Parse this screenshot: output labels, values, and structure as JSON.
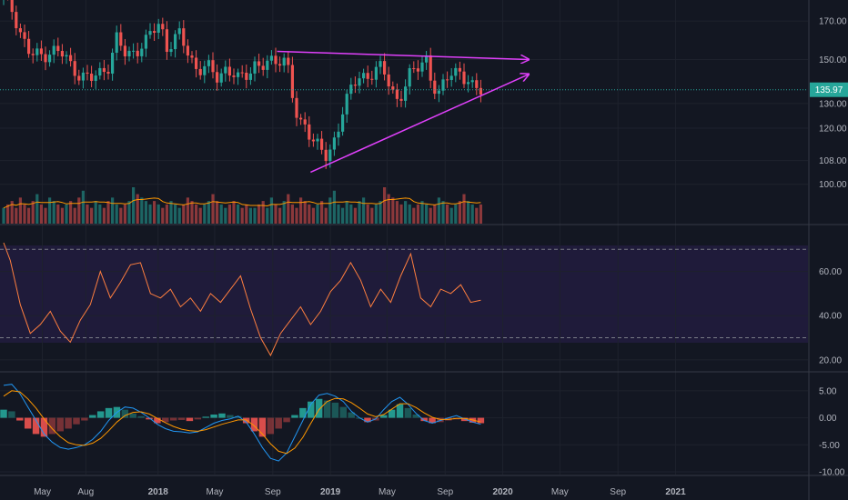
{
  "chart_data": [
    {
      "type": "candlestick",
      "panel": "price",
      "y_axis_ticks": [
        "170.00",
        "150.00",
        "130.00",
        "120.00",
        "108.00",
        "100.00"
      ],
      "y_axis_tick_values": [
        170,
        150,
        130,
        120,
        108,
        100
      ],
      "y_scale": "log",
      "ylim": [
        88,
        182
      ],
      "last_price_label": "135.97",
      "last_price": 135.97,
      "x_axis_ticks": [
        "May",
        "Aug",
        "2018",
        "May",
        "Sep",
        "2019",
        "May",
        "Sep",
        "2020",
        "May",
        "Sep",
        "2021"
      ],
      "grid": true,
      "colors": {
        "up": "#26a69a",
        "down": "#ef5350",
        "trendline": "#e040fb",
        "volume_ma": "#ff9800",
        "price_line": "#26a69a"
      },
      "trendlines": [
        {
          "kind": "resistance",
          "from_date": "2018-09-10",
          "from_price": 154,
          "to_date": "2020-02-25",
          "to_price": 150
        },
        {
          "kind": "support",
          "from_date": "2018-11-20",
          "from_price": 104,
          "to_date": "2020-02-25",
          "to_price": 143
        }
      ],
      "ohlc_path": [
        [
          "2017-02-08",
          184
        ],
        [
          "2017-03-01",
          175
        ],
        [
          "2017-03-20",
          161
        ],
        [
          "2017-04-05",
          152
        ],
        [
          "2017-05-01",
          152
        ],
        [
          "2017-05-20",
          155
        ],
        [
          "2017-06-15",
          152
        ],
        [
          "2017-07-01",
          147
        ],
        [
          "2017-07-20",
          143
        ],
        [
          "2017-08-10",
          140
        ],
        [
          "2017-09-01",
          144
        ],
        [
          "2017-09-20",
          148
        ],
        [
          "2017-10-05",
          160
        ],
        [
          "2017-10-25",
          152
        ],
        [
          "2017-11-15",
          155
        ],
        [
          "2017-12-05",
          158
        ],
        [
          "2017-12-20",
          164
        ],
        [
          "2018-01-05",
          170
        ],
        [
          "2018-01-20",
          156
        ],
        [
          "2018-02-15",
          162
        ],
        [
          "2018-03-10",
          152
        ],
        [
          "2018-03-25",
          145
        ],
        [
          "2018-04-15",
          146
        ],
        [
          "2018-05-05",
          142
        ],
        [
          "2018-05-25",
          146
        ],
        [
          "2018-06-20",
          140
        ],
        [
          "2018-07-10",
          144
        ],
        [
          "2018-07-25",
          148
        ],
        [
          "2018-08-15",
          146
        ],
        [
          "2018-09-01",
          149
        ],
        [
          "2018-09-15",
          151
        ],
        [
          "2018-10-01",
          150
        ],
        [
          "2018-10-15",
          130
        ],
        [
          "2018-10-25",
          120
        ],
        [
          "2018-11-10",
          122
        ],
        [
          "2018-11-25",
          116
        ],
        [
          "2018-12-10",
          113
        ],
        [
          "2018-12-26",
          107
        ],
        [
          "2019-01-10",
          116
        ],
        [
          "2019-01-25",
          127
        ],
        [
          "2019-02-15",
          137
        ],
        [
          "2019-03-01",
          140
        ],
        [
          "2019-03-20",
          143
        ],
        [
          "2019-04-05",
          145
        ],
        [
          "2019-04-20",
          146
        ],
        [
          "2019-05-05",
          138
        ],
        [
          "2019-05-20",
          132
        ],
        [
          "2019-06-05",
          136
        ],
        [
          "2019-06-20",
          143
        ],
        [
          "2019-07-10",
          147
        ],
        [
          "2019-07-25",
          152
        ],
        [
          "2019-08-05",
          138
        ],
        [
          "2019-08-20",
          132
        ],
        [
          "2019-09-01",
          141
        ],
        [
          "2019-09-15",
          144
        ],
        [
          "2019-10-01",
          146
        ],
        [
          "2019-10-15",
          139
        ],
        [
          "2019-10-25",
          136
        ],
        [
          "2019-11-10",
          137.5
        ],
        [
          "2019-11-20",
          135.97
        ]
      ]
    },
    {
      "type": "bar",
      "panel": "volume",
      "series": [
        {
          "values": [
            3,
            4,
            5,
            3,
            6,
            4,
            3,
            5,
            7,
            4,
            3,
            6,
            5,
            4,
            3,
            4,
            5,
            3,
            6,
            8,
            4,
            3,
            5,
            4,
            3,
            5,
            6,
            4,
            3,
            4,
            5,
            9,
            7,
            6,
            5,
            4,
            5,
            4,
            3,
            4,
            5,
            4,
            3,
            4,
            6,
            5,
            4,
            3,
            4,
            5,
            7,
            5,
            4,
            3,
            4,
            5,
            4,
            3,
            4,
            3
          ]
        }
      ]
    },
    {
      "type": "line",
      "panel": "rsi",
      "y_axis_ticks": [
        "60.00",
        "40.00",
        "20.00"
      ],
      "y_axis_tick_values": [
        60,
        40,
        20
      ],
      "ylim": [
        15,
        80
      ],
      "bands": [
        30,
        70
      ],
      "colors": {
        "line": "#ff7f3f",
        "band_fill": "#1f1b3a"
      },
      "values": [
        [
          0,
          73
        ],
        [
          2,
          65
        ],
        [
          5,
          45
        ],
        [
          8,
          32
        ],
        [
          11,
          36
        ],
        [
          14,
          42
        ],
        [
          17,
          33
        ],
        [
          20,
          28
        ],
        [
          23,
          38
        ],
        [
          26,
          45
        ],
        [
          29,
          60
        ],
        [
          32,
          48
        ],
        [
          35,
          55
        ],
        [
          38,
          63
        ],
        [
          41,
          64
        ],
        [
          44,
          50
        ],
        [
          47,
          48
        ],
        [
          50,
          52
        ],
        [
          53,
          44
        ],
        [
          56,
          48
        ],
        [
          59,
          42
        ],
        [
          62,
          50
        ],
        [
          65,
          46
        ],
        [
          68,
          52
        ],
        [
          71,
          58
        ],
        [
          74,
          43
        ],
        [
          77,
          30
        ],
        [
          80,
          22
        ],
        [
          83,
          32
        ],
        [
          86,
          38
        ],
        [
          89,
          44
        ],
        [
          92,
          36
        ],
        [
          95,
          42
        ],
        [
          98,
          51
        ],
        [
          101,
          56
        ],
        [
          104,
          64
        ],
        [
          107,
          56
        ],
        [
          110,
          44
        ],
        [
          113,
          52
        ],
        [
          116,
          46
        ],
        [
          119,
          58
        ],
        [
          122,
          68
        ],
        [
          125,
          48
        ],
        [
          128,
          44
        ],
        [
          131,
          52
        ],
        [
          134,
          50
        ],
        [
          137,
          54
        ],
        [
          140,
          46
        ],
        [
          143,
          47
        ]
      ]
    },
    {
      "type": "bar",
      "panel": "macd",
      "y_axis_ticks": [
        "5.00",
        "0.00",
        "-5.00",
        "-10.00"
      ],
      "y_axis_tick_values": [
        5,
        0,
        -5,
        -10
      ],
      "ylim": [
        -10.5,
        8
      ],
      "colors": {
        "macd": "#2196f3",
        "signal": "#ff9800",
        "hist_up": "#26a69a",
        "hist_down": "#ef5350"
      },
      "histogram": [
        1.5,
        1.2,
        -0.5,
        -2.0,
        -3.0,
        -3.5,
        -3.0,
        -2.5,
        -2.0,
        -1.2,
        -0.5,
        0.5,
        1.2,
        1.8,
        2.0,
        1.5,
        0.8,
        0.3,
        -0.3,
        -1.0,
        -0.8,
        -0.5,
        -0.4,
        -0.6,
        -0.3,
        0.2,
        0.6,
        0.8,
        0.5,
        0.3,
        -1.0,
        -2.5,
        -3.5,
        -3.0,
        -2.0,
        -0.8,
        0.5,
        1.8,
        3.0,
        3.5,
        3.2,
        2.8,
        2.0,
        1.0,
        0.0,
        -0.8,
        -0.5,
        0.5,
        1.5,
        2.5,
        1.8,
        0.6,
        -0.6,
        -1.0,
        -0.8,
        -0.5,
        -0.3,
        -0.6,
        -0.9,
        -1.0
      ],
      "macd_line": [
        6.0,
        6.2,
        4.5,
        2.0,
        -0.5,
        -3.0,
        -4.5,
        -5.5,
        -5.8,
        -5.5,
        -5.0,
        -4.0,
        -2.5,
        -0.5,
        1.0,
        2.0,
        1.8,
        1.0,
        0.0,
        -1.2,
        -2.0,
        -2.5,
        -2.6,
        -2.8,
        -2.6,
        -1.8,
        -1.0,
        -0.5,
        -0.2,
        0.3,
        -0.8,
        -3.0,
        -5.5,
        -7.5,
        -8.0,
        -6.5,
        -3.5,
        -0.5,
        2.5,
        4.2,
        4.5,
        4.0,
        3.0,
        1.2,
        0.0,
        -0.8,
        -0.2,
        1.5,
        3.0,
        3.8,
        2.5,
        0.8,
        -0.5,
        -1.0,
        -0.5,
        0.0,
        0.4,
        -0.2,
        -0.8,
        -1.2
      ],
      "signal_line": [
        4.0,
        5.0,
        4.8,
        3.5,
        1.8,
        -0.2,
        -2.0,
        -3.5,
        -4.6,
        -5.0,
        -5.1,
        -4.7,
        -3.8,
        -2.4,
        -0.8,
        0.4,
        1.0,
        1.1,
        0.7,
        -0.1,
        -0.9,
        -1.6,
        -2.1,
        -2.4,
        -2.5,
        -2.2,
        -1.7,
        -1.2,
        -0.8,
        -0.4,
        -0.4,
        -1.5,
        -3.0,
        -4.8,
        -6.2,
        -6.6,
        -5.6,
        -3.6,
        -1.0,
        1.5,
        3.0,
        3.6,
        3.5,
        2.8,
        1.8,
        0.7,
        0.2,
        0.6,
        1.6,
        2.6,
        2.6,
        1.9,
        0.9,
        0.1,
        -0.3,
        -0.3,
        -0.1,
        -0.1,
        -0.4,
        -0.8
      ]
    }
  ]
}
